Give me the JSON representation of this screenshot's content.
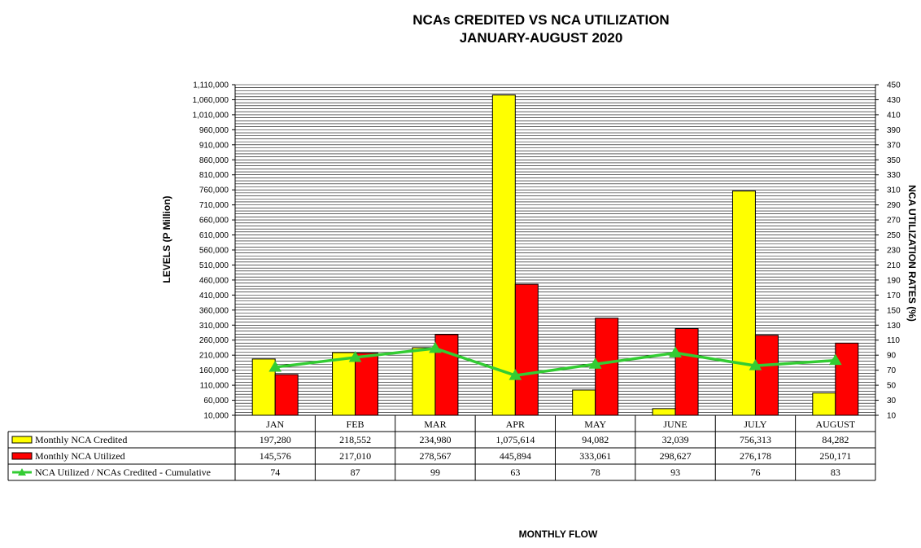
{
  "chart_data": {
    "type": "bar",
    "title": "NCAs CREDITED VS NCA UTILIZATION",
    "subtitle": "JANUARY-AUGUST 2020",
    "xlabel": "MONTHLY FLOW",
    "ylabel": "LEVELS (P Million)",
    "y2label": "NCA UTILIZATION RATES (%)",
    "categories": [
      "JAN",
      "FEB",
      "MAR",
      "APR",
      "MAY",
      "JUNE",
      "JULY",
      "AUGUST"
    ],
    "ylim": [
      10000,
      1110000
    ],
    "y_ticks": [
      "1,110,000",
      "1,060,000",
      "1,010,000",
      "960,000",
      "910,000",
      "860,000",
      "810,000",
      "760,000",
      "710,000",
      "660,000",
      "610,000",
      "560,000",
      "510,000",
      "460,000",
      "410,000",
      "360,000",
      "310,000",
      "260,000",
      "210,000",
      "160,000",
      "110,000",
      "60,000",
      "10,000"
    ],
    "y2lim": [
      10,
      450
    ],
    "y2_ticks": [
      "450",
      "430",
      "410",
      "390",
      "370",
      "350",
      "330",
      "310",
      "290",
      "270",
      "250",
      "230",
      "210",
      "190",
      "170",
      "150",
      "130",
      "110",
      "90",
      "70",
      "50",
      "30",
      "10"
    ],
    "grid": true,
    "legend": "data table",
    "series": [
      {
        "name": "Monthly NCA Credited",
        "type": "bar",
        "axis": "left",
        "color": "#ffff00",
        "values": [
          197280,
          218552,
          234980,
          1075614,
          94082,
          32039,
          756313,
          84282
        ],
        "labels": [
          "197,280",
          "218,552",
          "234,980",
          "1,075,614",
          "94,082",
          "32,039",
          "756,313",
          "84,282"
        ]
      },
      {
        "name": "Monthly NCA Utilized",
        "type": "bar",
        "axis": "left",
        "color": "#ff0000",
        "values": [
          145576,
          217010,
          278567,
          445894,
          333061,
          298627,
          276178,
          250171
        ],
        "labels": [
          "145,576",
          "217,010",
          "278,567",
          "445,894",
          "333,061",
          "298,627",
          "276,178",
          "250,171"
        ]
      },
      {
        "name": "NCA Utilized / NCAs Credited - Cumulative",
        "type": "line",
        "axis": "right",
        "color": "#33cc33",
        "values": [
          74,
          87,
          99,
          63,
          78,
          93,
          76,
          83
        ],
        "labels": [
          "74",
          "87",
          "99",
          "63",
          "78",
          "93",
          "76",
          "83"
        ]
      }
    ]
  }
}
